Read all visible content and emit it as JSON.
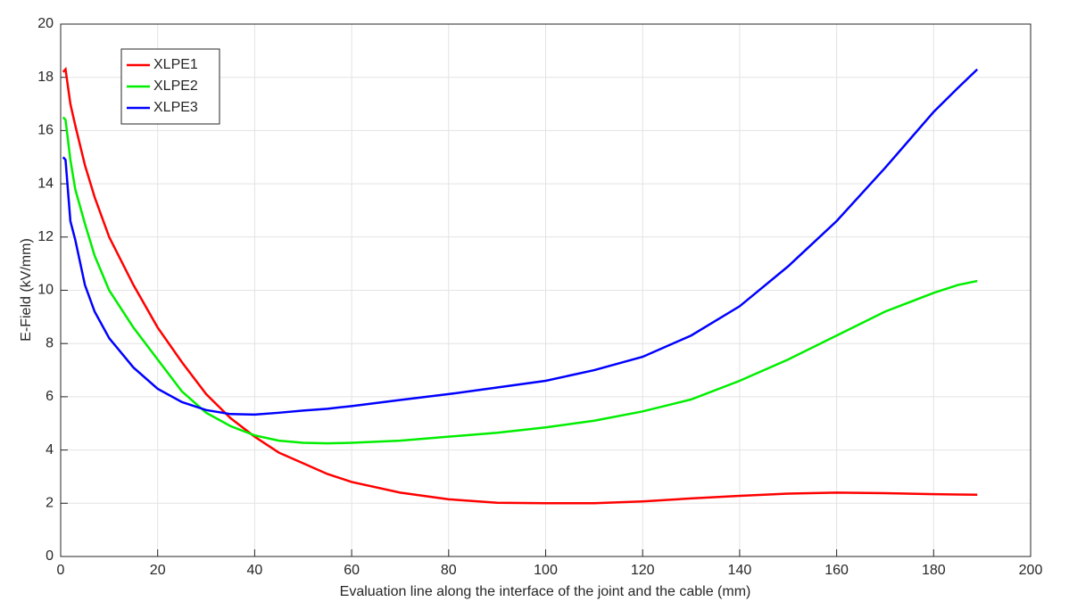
{
  "chart_data": {
    "type": "line",
    "xlabel": "Evaluation line along the interface of the joint and the cable (mm)",
    "ylabel": "E-Field (kV/mm)",
    "x": [
      0.5,
      1,
      2,
      3,
      5,
      7,
      10,
      15,
      20,
      25,
      30,
      35,
      40,
      45,
      50,
      55,
      60,
      70,
      80,
      90,
      100,
      110,
      120,
      130,
      140,
      150,
      160,
      170,
      180,
      185,
      189
    ],
    "series": [
      {
        "name": "XLPE1",
        "color": "#ff0000",
        "values": [
          18.2,
          18.3,
          17,
          16.2,
          14.7,
          13.5,
          12,
          10.2,
          8.6,
          7.3,
          6.1,
          5.2,
          4.5,
          3.9,
          3.5,
          3.1,
          2.8,
          2.4,
          2.15,
          2.02,
          2.0,
          2.0,
          2.07,
          2.18,
          2.28,
          2.36,
          2.4,
          2.38,
          2.34,
          2.33,
          2.32
        ]
      },
      {
        "name": "XLPE2",
        "color": "#00ee00",
        "values": [
          16.5,
          16.4,
          14.9,
          13.8,
          12.5,
          11.3,
          10,
          8.6,
          7.4,
          6.2,
          5.4,
          4.9,
          4.55,
          4.35,
          4.27,
          4.25,
          4.27,
          4.35,
          4.5,
          4.65,
          4.85,
          5.1,
          5.45,
          5.9,
          6.6,
          7.4,
          8.3,
          9.2,
          9.9,
          10.2,
          10.35
        ]
      },
      {
        "name": "XLPE3",
        "color": "#0000ff",
        "values": [
          15,
          14.9,
          12.6,
          11.9,
          10.2,
          9.2,
          8.2,
          7.1,
          6.3,
          5.8,
          5.5,
          5.35,
          5.33,
          5.4,
          5.48,
          5.55,
          5.65,
          5.88,
          6.1,
          6.35,
          6.6,
          7.0,
          7.5,
          8.3,
          9.4,
          10.9,
          12.6,
          14.6,
          16.7,
          17.6,
          18.3
        ]
      }
    ],
    "xlim": [
      0,
      200
    ],
    "xticks": [
      0,
      20,
      40,
      60,
      80,
      100,
      120,
      140,
      160,
      180,
      200
    ],
    "ylim": [
      0,
      20
    ],
    "yticks": [
      0,
      2,
      4,
      6,
      8,
      10,
      12,
      14,
      16,
      18,
      20
    ],
    "grid": true,
    "legend": "upper left"
  }
}
